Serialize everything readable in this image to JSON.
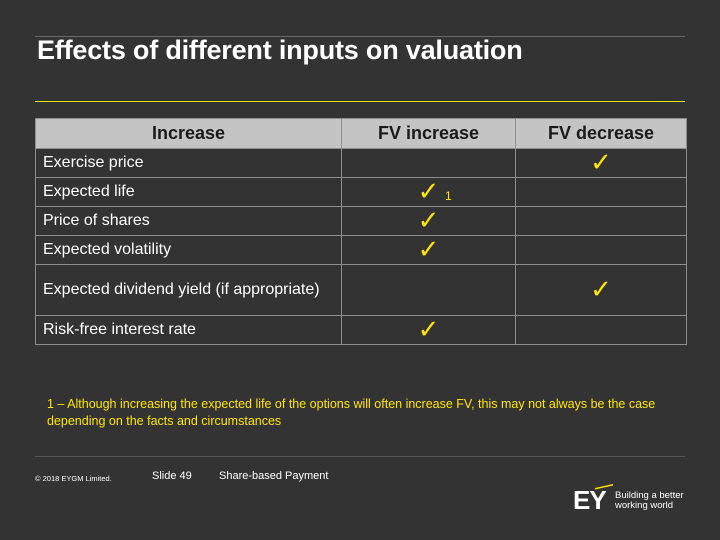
{
  "title": "Effects of different inputs on valuation",
  "table": {
    "headers": [
      "Increase",
      "FV increase",
      "FV decrease"
    ],
    "rows": [
      {
        "label": "Exercise price",
        "fv_increase": false,
        "fv_decrease": true
      },
      {
        "label": "Expected life",
        "fv_increase": true,
        "fv_increase_note": "1",
        "fv_decrease": false
      },
      {
        "label": "Price of shares",
        "fv_increase": true,
        "fv_decrease": false
      },
      {
        "label": "Expected volatility",
        "fv_increase": true,
        "fv_decrease": false
      },
      {
        "label": "Expected dividend yield (if appropriate)",
        "fv_increase": false,
        "fv_decrease": true
      },
      {
        "label": "Risk-free interest rate",
        "fv_increase": true,
        "fv_decrease": false
      }
    ],
    "check_symbol": "✓"
  },
  "footnote": "1 – Although increasing the expected life of the options will often increase FV, this may not always be the case depending on the facts and circumstances",
  "footer": {
    "copyright": "© 2018 EYGM Limited.",
    "slide_number": "Slide 49",
    "presentation_title": "Share-based Payment"
  },
  "logo": {
    "text": "EY",
    "tagline_line1": "Building a better",
    "tagline_line2": "working world"
  },
  "colors": {
    "background": "#333333",
    "accent_yellow": "#ffe600",
    "header_fill": "#c4c4c4"
  }
}
